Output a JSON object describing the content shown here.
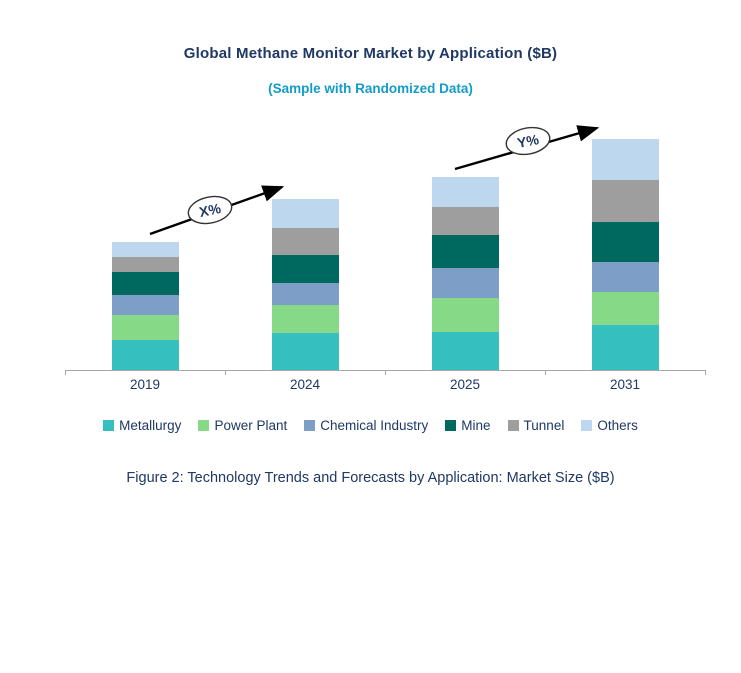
{
  "title": "Global Methane Monitor Market by Application ($B)",
  "subtitle": "(Sample with Randomized Data)",
  "caption": "Figure 2: Technology Trends and Forecasts by Application: Market Size ($B)",
  "annotations": {
    "x_label": "X%",
    "y_label": "Y%"
  },
  "colors": {
    "title_text": "#1F3864",
    "subtitle_text": "#149CC8",
    "axis_line": "#A6A6A6",
    "arrow": "#000000"
  },
  "chart_data": {
    "type": "bar",
    "stacked": true,
    "title": "Global Methane Monitor Market by Application ($B)",
    "subtitle": "(Sample with Randomized Data)",
    "unit": "$B",
    "xlabel": "",
    "ylabel": "",
    "legend_position": "bottom",
    "grid": false,
    "categories": [
      "2019",
      "2024",
      "2025",
      "2031"
    ],
    "series": [
      {
        "name": "Metallurgy",
        "color": "#35BFBF",
        "values": [
          3.0,
          3.7,
          3.8,
          4.5
        ]
      },
      {
        "name": "Power Plant",
        "color": "#86D986",
        "values": [
          2.5,
          2.8,
          3.4,
          3.3
        ]
      },
      {
        "name": "Chemical Industry",
        "color": "#7D9EC6",
        "values": [
          2.0,
          2.2,
          3.0,
          3.0
        ]
      },
      {
        "name": "Mine",
        "color": "#00695F",
        "values": [
          2.3,
          2.8,
          3.3,
          4.0
        ]
      },
      {
        "name": "Tunnel",
        "color": "#9E9E9E",
        "values": [
          1.5,
          2.7,
          2.8,
          4.2
        ]
      },
      {
        "name": "Others",
        "color": "#BDD7EE",
        "values": [
          1.5,
          2.9,
          3.0,
          4.1
        ]
      }
    ],
    "totals": [
      12.8,
      17.1,
      19.3,
      23.1
    ],
    "growth_annotations": [
      {
        "label": "X%",
        "from_category": "2019",
        "to_category": "2024"
      },
      {
        "label": "Y%",
        "from_category": "2025",
        "to_category": "2031"
      }
    ]
  }
}
